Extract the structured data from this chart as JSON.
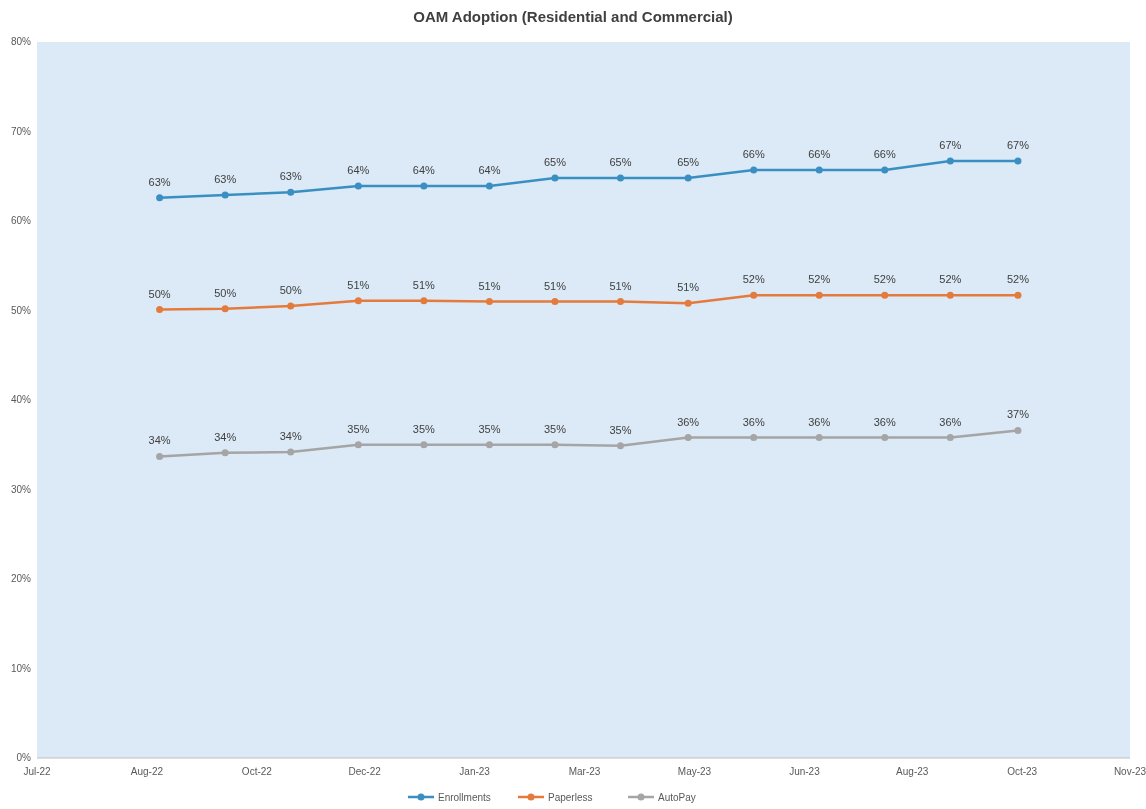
{
  "chart_data": {
    "type": "line",
    "title": "OAM Adoption (Residential and Commercial)",
    "x": [
      "2022-08-28",
      "2022-09-28",
      "2022-10-29",
      "2022-11-30",
      "2022-12-31",
      "2023-01-31",
      "2023-03-03",
      "2023-04-03",
      "2023-05-05",
      "2023-06-05",
      "2023-07-06",
      "2023-08-06",
      "2023-09-06",
      "2023-10-08"
    ],
    "series": [
      {
        "name": "Enrollments",
        "color": "#3a8fc2",
        "values": [
          62.6,
          62.9,
          63.2,
          63.9,
          63.9,
          63.9,
          64.8,
          64.8,
          64.8,
          65.7,
          65.7,
          65.7,
          66.7,
          66.7
        ],
        "value_labels": [
          "63%",
          "63%",
          "63%",
          "64%",
          "64%",
          "64%",
          "65%",
          "65%",
          "65%",
          "66%",
          "66%",
          "66%",
          "67%",
          "67%"
        ]
      },
      {
        "name": "Paperless",
        "color": "#e47b3c",
        "values": [
          50.1,
          50.2,
          50.5,
          51.1,
          51.1,
          51.0,
          51.0,
          51.0,
          50.8,
          51.7,
          51.7,
          51.7,
          51.7,
          51.7
        ],
        "value_labels": [
          "50%",
          "50%",
          "50%",
          "51%",
          "51%",
          "51%",
          "51%",
          "51%",
          "51%",
          "52%",
          "52%",
          "52%",
          "52%",
          "52%"
        ]
      },
      {
        "name": "AutoPay",
        "color": "#a5a5a5",
        "values": [
          33.7,
          34.1,
          34.2,
          35.0,
          35.0,
          35.0,
          35.0,
          34.9,
          35.8,
          35.8,
          35.8,
          35.8,
          35.8,
          36.6
        ],
        "value_labels": [
          "34%",
          "34%",
          "34%",
          "35%",
          "35%",
          "35%",
          "35%",
          "35%",
          "36%",
          "36%",
          "36%",
          "36%",
          "36%",
          "37%"
        ]
      }
    ],
    "xlim": [
      "2022-07-01",
      "2023-11-30"
    ],
    "xticks": [
      {
        "value": "2022-07-01",
        "label": "Jul-22"
      },
      {
        "value": "2022-08-22",
        "label": "Aug-22"
      },
      {
        "value": "2022-10-13",
        "label": "Oct-22"
      },
      {
        "value": "2022-12-03",
        "label": "Dec-22"
      },
      {
        "value": "2023-01-24",
        "label": "Jan-23"
      },
      {
        "value": "2023-03-17",
        "label": "Mar-23"
      },
      {
        "value": "2023-05-08",
        "label": "May-23"
      },
      {
        "value": "2023-06-29",
        "label": "Jun-23"
      },
      {
        "value": "2023-08-19",
        "label": "Aug-23"
      },
      {
        "value": "2023-10-10",
        "label": "Oct-23"
      },
      {
        "value": "2023-11-30",
        "label": "Nov-23"
      }
    ],
    "ylim": [
      0,
      80
    ],
    "yticks": [
      {
        "value": 0,
        "label": "0%"
      },
      {
        "value": 10,
        "label": "10%"
      },
      {
        "value": 20,
        "label": "20%"
      },
      {
        "value": 30,
        "label": "30%"
      },
      {
        "value": 40,
        "label": "40%"
      },
      {
        "value": 50,
        "label": "50%"
      },
      {
        "value": 60,
        "label": "60%"
      },
      {
        "value": 70,
        "label": "70%"
      },
      {
        "value": 80,
        "label": "80%"
      }
    ],
    "grid": false,
    "legend": "bottom",
    "marker": "circle",
    "line_style": "solid"
  }
}
